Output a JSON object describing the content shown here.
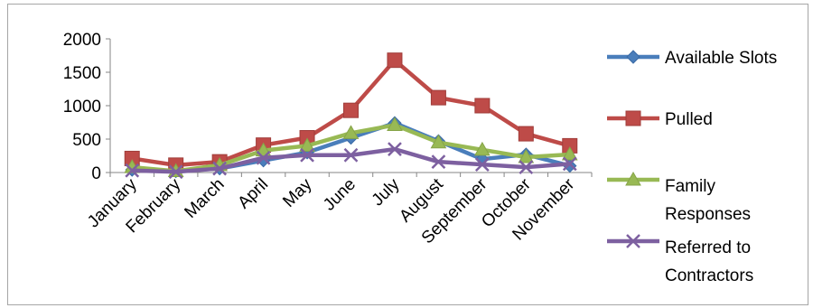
{
  "chart_data": {
    "type": "line",
    "title": "",
    "xlabel": "",
    "ylabel": "",
    "ylim": [
      0,
      2000
    ],
    "yticks": [
      0,
      500,
      1000,
      1500,
      2000
    ],
    "grid": false,
    "legend_position": "right",
    "categories": [
      "January",
      "February",
      "March",
      "April",
      "May",
      "June",
      "July",
      "August",
      "September",
      "October",
      "November"
    ],
    "series": [
      {
        "name": "Available Slots",
        "color": "#4a7ebb",
        "marker": "diamond",
        "values": [
          40,
          20,
          60,
          180,
          300,
          520,
          740,
          470,
          200,
          270,
          100
        ]
      },
      {
        "name": "Pulled",
        "color": "#be4b48",
        "marker": "square",
        "values": [
          210,
          110,
          160,
          410,
          520,
          930,
          1680,
          1120,
          1000,
          580,
          400
        ]
      },
      {
        "name": "Family Responses",
        "color": "#98b954",
        "marker": "triangle",
        "values": [
          80,
          20,
          110,
          330,
          400,
          590,
          710,
          450,
          340,
          230,
          270
        ]
      },
      {
        "name": "Referred to Contractors",
        "color": "#7d60a0",
        "marker": "x",
        "values": [
          30,
          10,
          60,
          220,
          260,
          260,
          350,
          160,
          120,
          80,
          130
        ]
      }
    ]
  }
}
